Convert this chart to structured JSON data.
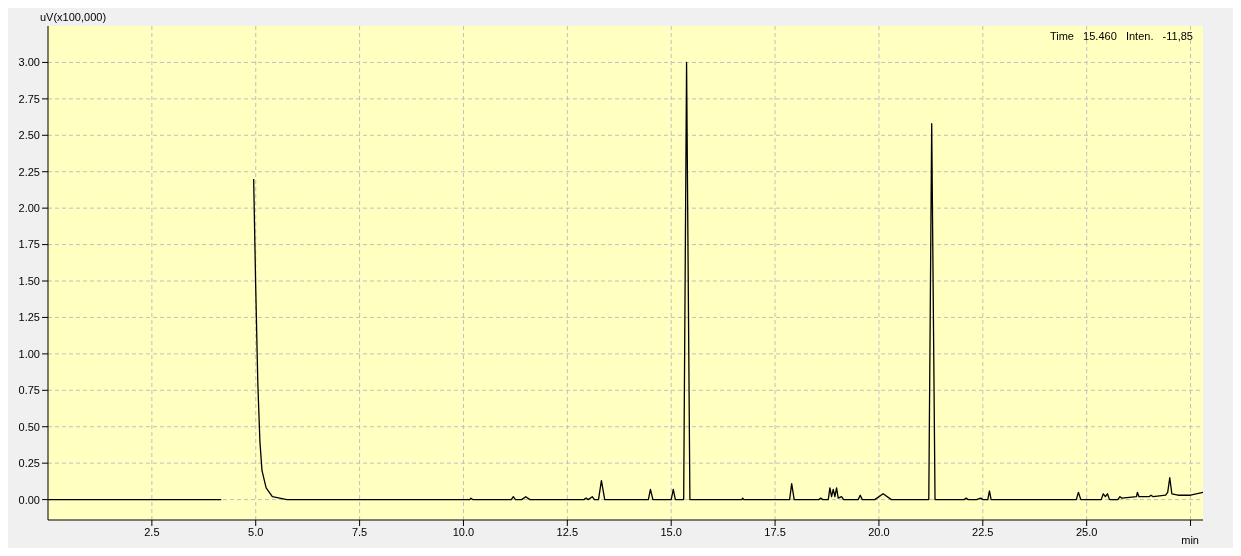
{
  "chart_data": {
    "type": "line",
    "ylabel": "uV(x100,000)",
    "xlabel": "min",
    "annotations": [
      "Time   15.460   Inten.   -11,85"
    ],
    "color": "#000000",
    "grid": true,
    "xlim": [
      0,
      27.8
    ],
    "xticks": [
      2.5,
      {
        "value": 5,
        "label": "5.0"
      },
      7.5,
      {
        "value": 10,
        "label": "10.0"
      },
      12.5,
      {
        "value": 15,
        "label": "15.0"
      },
      17.5,
      {
        "value": 20,
        "label": "20.0"
      },
      22.5,
      {
        "value": 25,
        "label": "25.0"
      },
      {
        "value": 27.5,
        "label": null
      }
    ],
    "ylim": [
      -0.14,
      3.25
    ],
    "yticks": [
      {
        "value": 0,
        "label": "0.00"
      },
      {
        "value": 0.25,
        "label": "0.25"
      },
      {
        "value": 0.5,
        "label": "0.50"
      },
      {
        "value": 0.75,
        "label": "0.75"
      },
      {
        "value": 1,
        "label": "1.00"
      },
      {
        "value": 1.25,
        "label": "1.25"
      },
      {
        "value": 1.5,
        "label": "1.50"
      },
      {
        "value": 1.75,
        "label": "1.75"
      },
      {
        "value": 2,
        "label": "2.00"
      },
      {
        "value": 2.25,
        "label": "2.25"
      },
      {
        "value": 2.5,
        "label": "2.50"
      },
      {
        "value": 2.75,
        "label": "2.75"
      },
      {
        "value": 3,
        "label": "3.00"
      }
    ],
    "x": [
      0,
      4.17,
      4.18,
      4.87,
      4.95,
      5.0,
      5.05,
      5.1,
      5.15,
      5.25,
      5.4,
      5.75,
      10.15,
      10.18,
      10.22,
      11.15,
      11.2,
      11.25,
      11.4,
      11.5,
      11.6,
      12.9,
      12.95,
      13.0,
      13.1,
      13.15,
      13.25,
      13.32,
      13.4,
      14.45,
      14.5,
      14.56,
      15.0,
      15.05,
      15.1,
      15.3,
      15.37,
      15.45,
      16.7,
      16.72,
      16.75,
      17.85,
      17.9,
      17.96,
      18.55,
      18.6,
      18.65,
      18.78,
      18.82,
      18.86,
      18.9,
      18.94,
      18.98,
      19.02,
      19.1,
      19.15,
      19.5,
      19.55,
      19.6,
      19.9,
      20.1,
      20.3,
      21.2,
      21.27,
      21.35,
      22.05,
      22.1,
      22.15,
      22.35,
      22.45,
      22.5,
      22.62,
      22.66,
      22.7,
      24.75,
      24.8,
      24.86,
      25.35,
      25.4,
      25.45,
      25.5,
      25.55,
      25.75,
      25.8,
      25.85,
      26.2,
      26.22,
      26.26,
      26.5,
      26.55,
      26.6,
      26.9,
      26.95,
      27.0,
      27.05,
      27.2,
      27.5,
      27.8
    ],
    "values": [
      0,
      0,
      null,
      null,
      2.2,
      1.45,
      0.8,
      0.4,
      0.2,
      0.08,
      0.02,
      0,
      0,
      0.01,
      0,
      0,
      0.02,
      0,
      0,
      0.02,
      0,
      0,
      0.01,
      0,
      0.02,
      0,
      0,
      0.13,
      0,
      0,
      0.07,
      0,
      0,
      0.07,
      0,
      0,
      3.0,
      0,
      0,
      0.01,
      0,
      0,
      0.11,
      0,
      0,
      0.01,
      0,
      0,
      0.08,
      0.02,
      0.07,
      0.02,
      0.08,
      0.01,
      0.02,
      0,
      0,
      0.03,
      0,
      0,
      0.04,
      0,
      0,
      2.58,
      0,
      0,
      0.01,
      0,
      0,
      0.01,
      0,
      0,
      0.06,
      0,
      0,
      0.05,
      0,
      0,
      0.04,
      0.02,
      0.04,
      0,
      0,
      0.02,
      0.01,
      0.02,
      0.05,
      0.02,
      0.02,
      0.03,
      0.02,
      0.03,
      0.05,
      0.15,
      0.04,
      0.03,
      0.03,
      0.05
    ]
  }
}
